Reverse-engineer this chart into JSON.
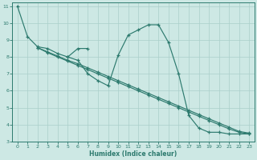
{
  "xlabel": "Humidex (Indice chaleur)",
  "bg_color": "#cde8e4",
  "grid_color": "#aacfca",
  "line_color": "#2d7a6e",
  "xlim": [
    -0.5,
    23.5
  ],
  "ylim": [
    3,
    11.2
  ],
  "yticks": [
    3,
    4,
    5,
    6,
    7,
    8,
    9,
    10,
    11
  ],
  "xticks": [
    0,
    1,
    2,
    3,
    4,
    5,
    6,
    7,
    8,
    9,
    10,
    11,
    12,
    13,
    14,
    15,
    16,
    17,
    18,
    19,
    20,
    21,
    22,
    23
  ],
  "line1_x": [
    0,
    1,
    2,
    3,
    4,
    5,
    6,
    7,
    8,
    9,
    10,
    11,
    12,
    13,
    14,
    15,
    16,
    17,
    18,
    19,
    20,
    21,
    22,
    23
  ],
  "line1_y": [
    11.0,
    9.2,
    8.6,
    8.5,
    8.2,
    8.0,
    7.8,
    7.0,
    6.6,
    6.3,
    8.1,
    9.3,
    9.6,
    9.9,
    9.9,
    8.85,
    7.0,
    4.55,
    3.8,
    3.55,
    3.55,
    3.45,
    3.45,
    3.45
  ],
  "line2_x": [
    2,
    3,
    4,
    5,
    6,
    7,
    8,
    9,
    10,
    11,
    12,
    13,
    14,
    15,
    16,
    17,
    18,
    19,
    20,
    21,
    22,
    23
  ],
  "line2_y": [
    8.55,
    8.3,
    8.05,
    7.8,
    7.6,
    7.35,
    7.1,
    6.85,
    6.6,
    6.35,
    6.1,
    5.85,
    5.6,
    5.35,
    5.1,
    4.85,
    4.6,
    4.35,
    4.1,
    3.85,
    3.6,
    3.5
  ],
  "line3_x": [
    2,
    3,
    4,
    5,
    6,
    7,
    8,
    9,
    10,
    11,
    12,
    13,
    14,
    15,
    16,
    17,
    18,
    19,
    20,
    21,
    22,
    23
  ],
  "line3_y": [
    8.55,
    8.25,
    8.0,
    7.75,
    7.5,
    7.25,
    7.0,
    6.75,
    6.5,
    6.25,
    6.0,
    5.75,
    5.5,
    5.25,
    5.0,
    4.75,
    4.5,
    4.25,
    4.0,
    3.75,
    3.55,
    3.45
  ],
  "line4_x": [
    5,
    6,
    7
  ],
  "line4_y": [
    8.0,
    8.5,
    8.5
  ]
}
